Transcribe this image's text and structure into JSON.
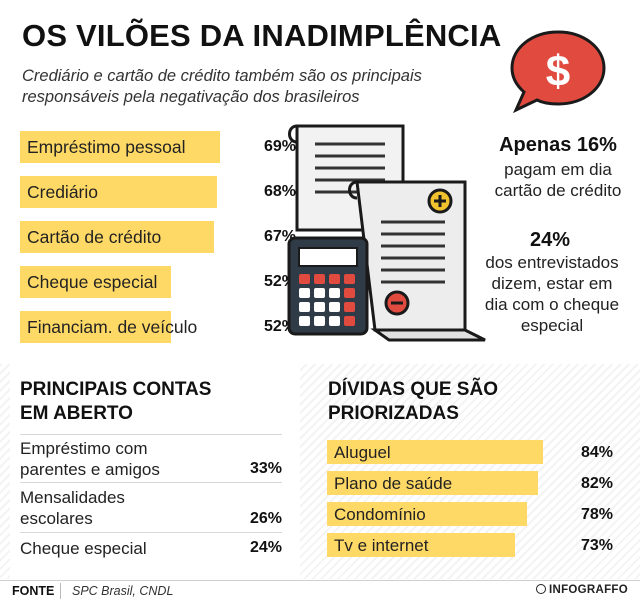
{
  "title": "OS VILÕES DA INADIMPLÊNCIA",
  "subtitle": "Crediário e cartão de crédito também são os principais responsáveis pela negativação dos brasileiros",
  "bubble": {
    "icon": "dollar-speech-bubble-icon",
    "glyph": "$",
    "color": "#e04a3f"
  },
  "chart_data": [
    {
      "type": "bar",
      "orientation": "horizontal",
      "categories": [
        "Empréstimo pessoal",
        "Crediário",
        "Cartão de crédito",
        "Cheque especial",
        "Financiam. de veículo"
      ],
      "values": [
        69,
        68,
        67,
        52,
        52
      ],
      "value_labels": [
        "69%",
        "68%",
        "67%",
        "52%",
        "52%"
      ],
      "xlim": [
        0,
        100
      ],
      "bar_color": "#ffd966"
    },
    {
      "type": "table",
      "title": "PRINCIPAIS CONTAS EM ABERTO",
      "rows": [
        {
          "label": "Empréstimo com parentes e amigos",
          "value": 33,
          "value_label": "33%"
        },
        {
          "label": "Mensalidades escolares",
          "value": 26,
          "value_label": "26%"
        },
        {
          "label": "Cheque especial",
          "value": 24,
          "value_label": "24%"
        }
      ]
    },
    {
      "type": "bar",
      "orientation": "horizontal",
      "title": "DÍVIDAS QUE SÃO PRIORIZADAS",
      "categories": [
        "Aluguel",
        "Plano de saúde",
        "Condomínio",
        "Tv e internet"
      ],
      "values": [
        84,
        82,
        78,
        73
      ],
      "value_labels": [
        "84%",
        "82%",
        "78%",
        "73%"
      ],
      "xlim": [
        0,
        100
      ],
      "bar_color": "#ffd966"
    }
  ],
  "left_rows": [
    {
      "line1": "Empréstimo com",
      "line2": "parentes e amigos",
      "value": "33%"
    },
    {
      "line1": "Mensalidades",
      "line2": "escolares",
      "value": "26%"
    },
    {
      "line1": "Cheque especial",
      "line2": "",
      "value": "24%"
    }
  ],
  "left_title_lines": [
    "PRINCIPAIS CONTAS",
    "EM ABERTO"
  ],
  "right_title_lines": [
    "DÍVIDAS QUE SÃO",
    "PRIORIZADAS"
  ],
  "stats": {
    "s1_main": "Apenas 16%",
    "s1_lines": [
      "pagam em dia",
      "cartão de crédito"
    ],
    "s2_main": "24%",
    "s2_lines": [
      "dos entrevistados",
      "dizem, estar em",
      "dia com o cheque",
      "especial"
    ]
  },
  "illustration": {
    "icons": [
      "receipt-icon",
      "calculator-icon",
      "plus-icon",
      "minus-icon"
    ]
  },
  "footer": {
    "label": "FONTE",
    "text": "SPC Brasil, CNDL",
    "brand": "INFOGRAFFO"
  }
}
